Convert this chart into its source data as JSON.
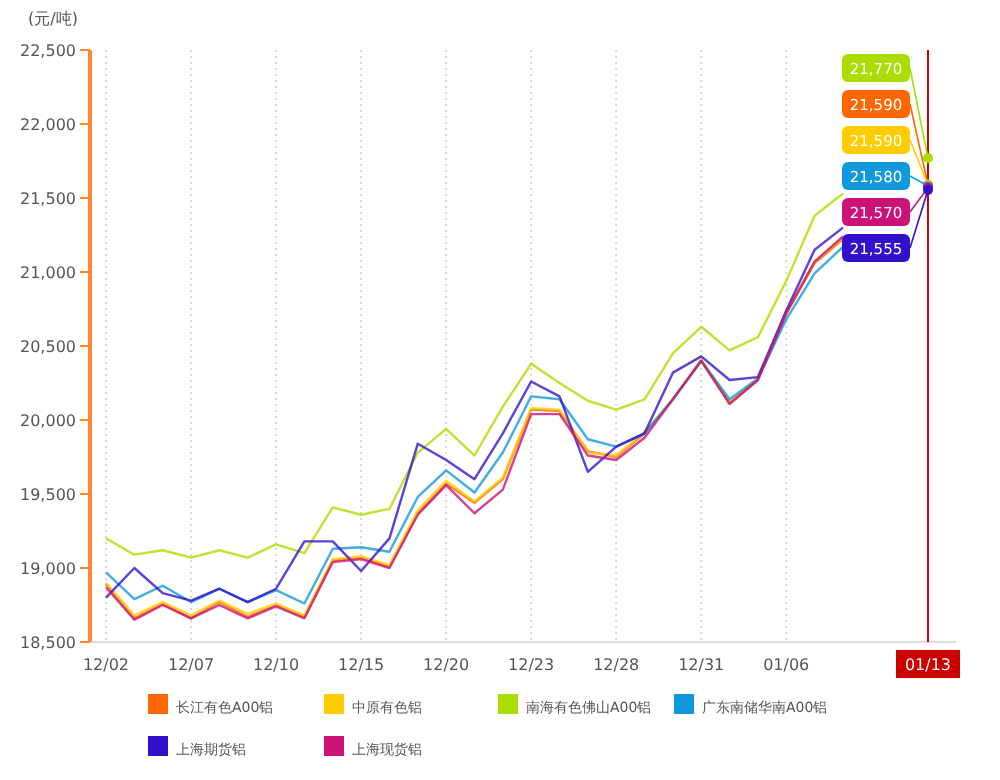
{
  "chart_data": {
    "type": "line",
    "ylabel": "(元/吨)",
    "categories": [
      "12/02",
      null,
      null,
      "12/07",
      null,
      null,
      "12/10",
      null,
      null,
      "12/15",
      null,
      null,
      "12/20",
      null,
      null,
      "12/23",
      null,
      null,
      "12/28",
      null,
      null,
      "12/31",
      null,
      null,
      "01/06",
      null,
      null,
      null,
      null,
      "01/13"
    ],
    "ylim": [
      18500,
      22500
    ],
    "yticks": [
      {
        "value": 18500,
        "label": "18,500"
      },
      {
        "value": 19000,
        "label": "19,000"
      },
      {
        "value": 19500,
        "label": "19,500"
      },
      {
        "value": 20000,
        "label": "20,000"
      },
      {
        "value": 20500,
        "label": "20,500"
      },
      {
        "value": 21000,
        "label": "21,000"
      },
      {
        "value": 21500,
        "label": "21,500"
      },
      {
        "value": 22000,
        "label": "22,000"
      },
      {
        "value": 22500,
        "label": "22,500"
      }
    ],
    "grid": "x",
    "legend": "bottom",
    "marker": "none",
    "line_style": "solid",
    "ref_lines": [
      {
        "axis": "x",
        "value": "01/13",
        "color": "#cc0000"
      }
    ],
    "series": [
      {
        "name": "长江有色A00铝",
        "color": "#ff6600",
        "values": [
          18890,
          18660,
          18760,
          18660,
          18770,
          18670,
          18750,
          18670,
          19050,
          19070,
          19010,
          19370,
          19570,
          19440,
          19600,
          20070,
          20060,
          19790,
          19750,
          19910,
          20140,
          20400,
          20110,
          20270,
          20720,
          21060,
          21220,
          null,
          null,
          21590
        ],
        "value_labels": [
          null,
          null,
          null,
          null,
          null,
          null,
          null,
          null,
          null,
          null,
          null,
          null,
          null,
          null,
          null,
          null,
          null,
          null,
          null,
          null,
          null,
          null,
          null,
          null,
          null,
          null,
          null,
          null,
          null,
          "21,590"
        ]
      },
      {
        "name": "中原有色铝",
        "color": "#ffcc00",
        "values": [
          18900,
          18680,
          18770,
          18680,
          18780,
          18690,
          18760,
          18680,
          19060,
          19080,
          19020,
          19390,
          19590,
          19450,
          19610,
          20080,
          20070,
          19780,
          19760,
          19920,
          20140,
          20410,
          20120,
          20280,
          20730,
          21070,
          21230,
          null,
          null,
          21590
        ],
        "value_labels": [
          null,
          null,
          null,
          null,
          null,
          null,
          null,
          null,
          null,
          null,
          null,
          null,
          null,
          null,
          null,
          null,
          null,
          null,
          null,
          null,
          null,
          null,
          null,
          null,
          null,
          null,
          null,
          null,
          null,
          "21,590"
        ]
      },
      {
        "name": "南海有色佛山A00铝",
        "color": "#aadd00",
        "values": [
          19200,
          19090,
          19120,
          19070,
          19120,
          19070,
          19160,
          19100,
          19410,
          19360,
          19400,
          19780,
          19940,
          19760,
          20090,
          20380,
          20250,
          20130,
          20070,
          20140,
          20450,
          20630,
          20470,
          20560,
          20940,
          21380,
          21530,
          null,
          null,
          21770
        ],
        "value_labels": [
          null,
          null,
          null,
          null,
          null,
          null,
          null,
          null,
          null,
          null,
          null,
          null,
          null,
          null,
          null,
          null,
          null,
          null,
          null,
          null,
          null,
          null,
          null,
          null,
          null,
          null,
          null,
          null,
          null,
          "21,770"
        ]
      },
      {
        "name": "广东南储华南A00铝",
        "color": "#1199dd",
        "values": [
          18970,
          18790,
          18880,
          18770,
          18860,
          18770,
          18850,
          18760,
          19130,
          19140,
          19110,
          19480,
          19660,
          19510,
          19780,
          20160,
          20140,
          19870,
          19820,
          19910,
          20140,
          20400,
          20140,
          20280,
          20680,
          20990,
          21170,
          null,
          null,
          21580
        ],
        "value_labels": [
          null,
          null,
          null,
          null,
          null,
          null,
          null,
          null,
          null,
          null,
          null,
          null,
          null,
          null,
          null,
          null,
          null,
          null,
          null,
          null,
          null,
          null,
          null,
          null,
          null,
          null,
          null,
          null,
          null,
          "21,580"
        ]
      },
      {
        "name": "上海期货铝",
        "color": "#3311cc",
        "values": [
          18800,
          19000,
          18830,
          18780,
          18860,
          18770,
          18860,
          19180,
          19180,
          18980,
          19200,
          19840,
          19730,
          19600,
          19910,
          20260,
          20160,
          19650,
          19820,
          19910,
          20320,
          20430,
          20270,
          20290,
          20740,
          21150,
          21300,
          null,
          null,
          21555
        ],
        "value_labels": [
          null,
          null,
          null,
          null,
          null,
          null,
          null,
          null,
          null,
          null,
          null,
          null,
          null,
          null,
          null,
          null,
          null,
          null,
          null,
          null,
          null,
          null,
          null,
          null,
          null,
          null,
          null,
          null,
          null,
          "21,555"
        ]
      },
      {
        "name": "上海现货铝",
        "color": "#cc1177",
        "values": [
          18870,
          18650,
          18750,
          18660,
          18750,
          18660,
          18740,
          18660,
          19040,
          19060,
          19000,
          19360,
          19560,
          19370,
          19530,
          20040,
          20040,
          19760,
          19730,
          19880,
          20140,
          20400,
          20110,
          20270,
          20720,
          21070,
          21240,
          null,
          null,
          21570
        ],
        "value_labels": [
          null,
          null,
          null,
          null,
          null,
          null,
          null,
          null,
          null,
          null,
          null,
          null,
          null,
          null,
          null,
          null,
          null,
          null,
          null,
          null,
          null,
          null,
          null,
          null,
          null,
          null,
          null,
          null,
          null,
          "21,570"
        ]
      }
    ]
  }
}
